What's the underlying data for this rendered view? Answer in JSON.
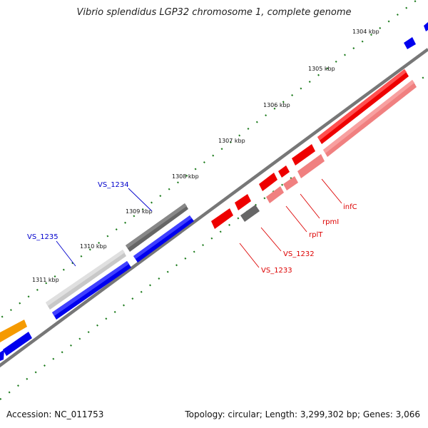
{
  "header": {
    "title": "Vibrio splendidus LGP32 chromosome 1, complete genome"
  },
  "footer": {
    "accession": "Accession: NC_011753",
    "summary": "Topology: circular; Length: 3,299,302 bp; Genes: 3,066"
  },
  "colors": {
    "backbone": "#777777",
    "tick": "#1a7a1a",
    "forward_gene": "#0000ee",
    "reverse_gene": "#ee0000",
    "reverse_gene_light": "#f08080",
    "forward_pseudo": "#666666",
    "forward_pseudo_light": "#c8c8c8",
    "orange_gene": "#f59a00",
    "forward_label": "#0000cc",
    "reverse_label": "#dd0000"
  },
  "ticks": [
    {
      "label": "1304 kbp"
    },
    {
      "label": "1305 kbp"
    },
    {
      "label": "1306 kbp"
    },
    {
      "label": "1307 kbp"
    },
    {
      "label": "1308 kbp"
    },
    {
      "label": "1309 kbp"
    },
    {
      "label": "1310 kbp"
    },
    {
      "label": "1311 kbp"
    }
  ],
  "gene_labels": [
    {
      "name": "VS_1234",
      "strand": "forward"
    },
    {
      "name": "VS_1235",
      "strand": "forward"
    },
    {
      "name": "infC",
      "strand": "reverse"
    },
    {
      "name": "rpmI",
      "strand": "reverse"
    },
    {
      "name": "rplT",
      "strand": "reverse"
    },
    {
      "name": "VS_1232",
      "strand": "reverse"
    },
    {
      "name": "VS_1233",
      "strand": "reverse"
    }
  ]
}
